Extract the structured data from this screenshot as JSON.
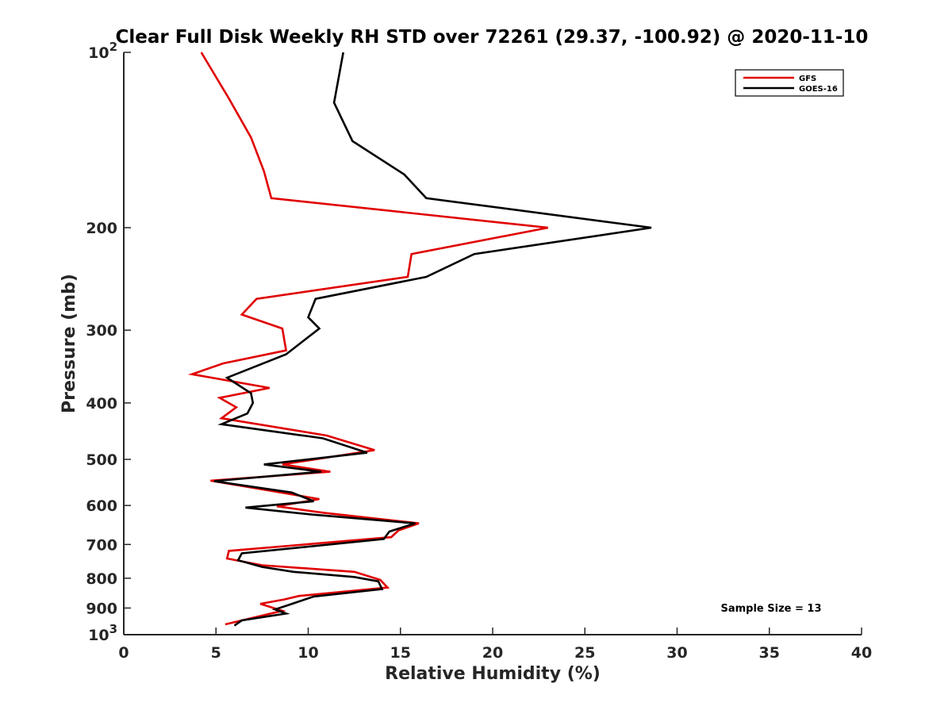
{
  "chart_data": {
    "type": "line",
    "title": "Clear Full Disk Weekly RH STD over 72261 (29.37, -100.92) @ 2020-11-10",
    "xlabel": "Relative Humidity (%)",
    "ylabel": "Pressure (mb)",
    "xlim": [
      0,
      40
    ],
    "ylim": [
      100,
      1000
    ],
    "y_scale": "log",
    "y_reversed": true,
    "grid": false,
    "legend_position": "top-right",
    "x_ticks": [
      0,
      5,
      10,
      15,
      20,
      25,
      30,
      35,
      40
    ],
    "y_ticks": [
      {
        "value": 100,
        "base": "10",
        "exp": "2"
      },
      {
        "value": 200,
        "label": "200"
      },
      {
        "value": 300,
        "label": "300"
      },
      {
        "value": 400,
        "label": "400"
      },
      {
        "value": 500,
        "label": "500"
      },
      {
        "value": 600,
        "label": "600"
      },
      {
        "value": 700,
        "label": "700"
      },
      {
        "value": 800,
        "label": "800"
      },
      {
        "value": 900,
        "label": "900"
      },
      {
        "value": 1000,
        "base": "10",
        "exp": "3"
      }
    ],
    "series": [
      {
        "name": "GFS",
        "color": "#e00000",
        "x": [
          4.2,
          5.7,
          6.9,
          7.6,
          8.0,
          23.0,
          15.6,
          15.4,
          7.2,
          6.4,
          8.6,
          8.8,
          5.4,
          3.7,
          7.9,
          5.2,
          6.1,
          5.3,
          11.0,
          13.6,
          8.6,
          11.2,
          4.7,
          7.8,
          10.6,
          8.3,
          10.9,
          16.0,
          14.9,
          14.5,
          5.7,
          5.6,
          7.5,
          12.5,
          13.9,
          14.3,
          9.5,
          8.7,
          7.4,
          8.6,
          5.5
        ],
        "y": [
          100,
          120,
          140,
          160,
          178,
          200,
          222,
          243,
          265,
          282,
          298,
          325,
          342,
          357,
          377,
          392,
          407,
          425,
          455,
          482,
          510,
          525,
          544,
          565,
          585,
          602,
          618,
          644,
          662,
          680,
          718,
          740,
          760,
          780,
          805,
          830,
          858,
          870,
          885,
          910,
          960
        ]
      },
      {
        "name": "GOES-16",
        "color": "#000000",
        "x": [
          11.9,
          11.4,
          12.4,
          15.2,
          16.4,
          28.6,
          19.0,
          16.4,
          10.4,
          10.0,
          10.6,
          8.8,
          5.6,
          6.9,
          7.0,
          6.7,
          5.3,
          10.8,
          13.2,
          7.6,
          10.7,
          4.9,
          9.1,
          10.3,
          6.6,
          10.2,
          15.8,
          14.4,
          14.1,
          6.4,
          6.2,
          7.5,
          9.2,
          12.5,
          13.8,
          14.0,
          10.3,
          9.6,
          8.9,
          8.2,
          8.8,
          6.4,
          6.2,
          6.0
        ],
        "y": [
          100,
          122,
          142,
          162,
          178,
          200,
          222,
          243,
          265,
          285,
          298,
          330,
          362,
          385,
          400,
          417,
          435,
          460,
          487,
          510,
          525,
          545,
          570,
          590,
          605,
          622,
          644,
          665,
          685,
          725,
          745,
          765,
          780,
          796,
          810,
          835,
          860,
          875,
          890,
          905,
          920,
          945,
          955,
          965
        ]
      }
    ],
    "annotations": [
      "Sample Size = 13"
    ]
  }
}
